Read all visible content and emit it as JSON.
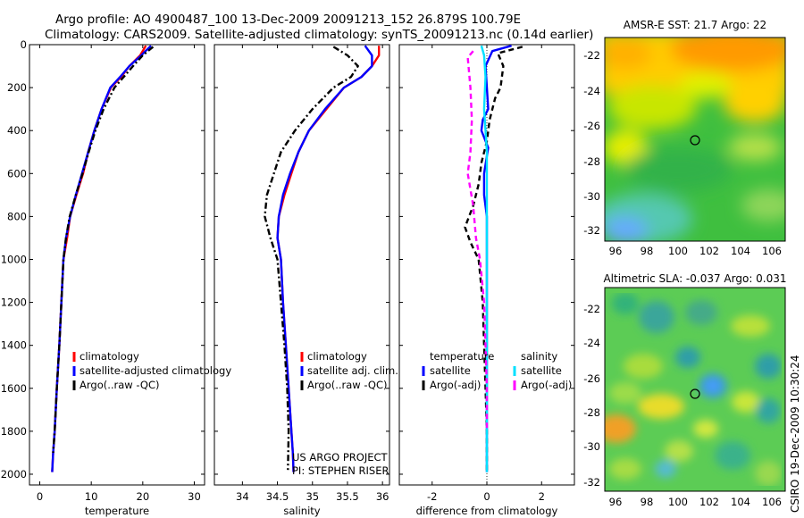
{
  "header": {
    "line1": "Argo profile: AO 4900487_100 13-Dec-2009 20091213_152 26.879S 100.79E",
    "line2": "Climatology: CARS2009. Satellite-adjusted climatology: synTS_20091213.nc (0.14d earlier)"
  },
  "colors": {
    "climatology": "#ff0000",
    "satellite": "#0000ff",
    "argo": "#000000",
    "satellite_salinity": "#00e0ff",
    "argo_salinity": "#ff00ff"
  },
  "chart_data": [
    {
      "type": "line",
      "id": "temperature",
      "xlabel": "temperature",
      "xlim": [
        -2,
        32
      ],
      "xticks": [
        0,
        10,
        20,
        30
      ],
      "ylim": [
        2050,
        0
      ],
      "yticks": [
        0,
        200,
        400,
        600,
        800,
        1000,
        1200,
        1400,
        1600,
        1800,
        2000
      ],
      "legend": [
        "climatology",
        "satellite-adjusted climatology",
        "Argo(..raw -QC)"
      ],
      "series": [
        {
          "name": "climatology",
          "color": "#ff0000",
          "dash": "",
          "x": [
            20.6,
            19.5,
            17.4,
            15.8,
            13.8,
            12.0,
            10.6,
            9.4,
            8.4,
            7.1,
            5.9,
            5.3,
            4.6,
            4.2,
            3.8,
            3.3,
            2.9,
            2.6,
            2.4
          ],
          "y": [
            5,
            50,
            100,
            150,
            200,
            300,
            400,
            500,
            600,
            700,
            800,
            900,
            1000,
            1200,
            1400,
            1600,
            1800,
            1900,
            1990
          ]
        },
        {
          "name": "satellite-adjusted climatology",
          "color": "#0000ff",
          "dash": "",
          "x": [
            21.6,
            19.7,
            17.4,
            15.6,
            13.7,
            12.0,
            10.6,
            9.4,
            8.2,
            7.0,
            5.9,
            5.1,
            4.6,
            4.2,
            3.8,
            3.3,
            2.9,
            2.6,
            2.4
          ],
          "y": [
            5,
            50,
            100,
            150,
            200,
            300,
            400,
            500,
            600,
            700,
            800,
            900,
            1000,
            1200,
            1400,
            1600,
            1800,
            1900,
            1990
          ]
        },
        {
          "name": "Argo(..raw -QC)",
          "color": "#000000",
          "dash": "7,3,2,3",
          "x": [
            22.0,
            20.0,
            18.1,
            16.3,
            14.5,
            12.4,
            10.8,
            9.5,
            8.3,
            7.0,
            5.8,
            5.1,
            4.6,
            4.2,
            3.8,
            3.3,
            2.9,
            2.6
          ],
          "y": [
            10,
            50,
            100,
            150,
            200,
            300,
            400,
            500,
            600,
            700,
            800,
            900,
            1000,
            1200,
            1400,
            1600,
            1800,
            1900
          ]
        }
      ]
    },
    {
      "type": "line",
      "id": "salinity",
      "xlabel": "salinity",
      "xlim": [
        33.6,
        36.1
      ],
      "xticks": [
        34,
        34.5,
        35,
        35.5,
        36
      ],
      "ylim": [
        2050,
        0
      ],
      "yticks": [
        0,
        200,
        400,
        600,
        800,
        1000,
        1200,
        1400,
        1600,
        1800,
        2000
      ],
      "legend": [
        "climatology",
        "satellite adj. clim.",
        "Argo(..raw -QC)"
      ],
      "annotations": [
        "US ARGO PROJECT",
        "PI: STEPHEN RISER"
      ],
      "series": [
        {
          "name": "climatology",
          "color": "#ff0000",
          "dash": "",
          "x": [
            35.95,
            35.95,
            35.85,
            35.7,
            35.45,
            35.2,
            34.95,
            34.8,
            34.7,
            34.6,
            34.52,
            34.5,
            34.55,
            34.58,
            34.62,
            34.66,
            34.7,
            34.72,
            34.73
          ],
          "y": [
            5,
            50,
            100,
            150,
            200,
            300,
            400,
            500,
            600,
            700,
            800,
            900,
            1000,
            1200,
            1400,
            1600,
            1800,
            1900,
            1990
          ]
        },
        {
          "name": "satellite adj. clim.",
          "color": "#0000ff",
          "dash": "",
          "x": [
            35.75,
            35.85,
            35.85,
            35.7,
            35.45,
            35.18,
            34.95,
            34.8,
            34.68,
            34.58,
            34.52,
            34.5,
            34.55,
            34.58,
            34.62,
            34.66,
            34.7,
            34.72,
            34.73
          ],
          "y": [
            5,
            50,
            100,
            150,
            200,
            300,
            400,
            500,
            600,
            700,
            800,
            900,
            1000,
            1200,
            1400,
            1600,
            1800,
            1900,
            1990
          ]
        },
        {
          "name": "Argo(..raw -QC)",
          "color": "#000000",
          "dash": "7,3,2,3",
          "x": [
            35.3,
            35.5,
            35.65,
            35.55,
            35.3,
            35.0,
            34.75,
            34.55,
            34.45,
            34.35,
            34.32,
            34.4,
            34.5,
            34.55,
            34.6,
            34.64,
            34.66,
            34.65
          ],
          "y": [
            10,
            50,
            100,
            150,
            200,
            300,
            400,
            500,
            600,
            700,
            800,
            900,
            1000,
            1200,
            1400,
            1600,
            1800,
            1980
          ]
        }
      ]
    },
    {
      "type": "line",
      "id": "difference",
      "xlabel": "difference from climatology",
      "xlim": [
        -3.2,
        3.2
      ],
      "xticks": [
        -2,
        0,
        2
      ],
      "ylim": [
        2050,
        0
      ],
      "yticks": [
        0,
        200,
        400,
        600,
        800,
        1000,
        1200,
        1400,
        1600,
        1800,
        2000
      ],
      "legend": {
        "temperature_heading": "temperature",
        "salinity_heading": "salinity",
        "entries": [
          "satellite",
          "Argo(-adj)",
          "satellite",
          "Argo(-adj)"
        ]
      },
      "series": [
        {
          "name": "temperature satellite",
          "color": "#0000ff",
          "dash": "",
          "x": [
            0.9,
            0.2,
            -0.05,
            0.0,
            0.05,
            -0.15,
            -0.2,
            0.05,
            -0.1,
            -0.1,
            0.0,
            0.0,
            0.0,
            0.0,
            0.0,
            0.0,
            0.0,
            0.0
          ],
          "y": [
            5,
            30,
            100,
            200,
            300,
            350,
            400,
            480,
            600,
            700,
            800,
            900,
            1000,
            1200,
            1400,
            1600,
            1800,
            1990
          ]
        },
        {
          "name": "temperature Argo(-adj)",
          "color": "#000000",
          "dash": "6,4",
          "x": [
            1.3,
            0.4,
            0.6,
            0.5,
            0.3,
            0.1,
            0.0,
            -0.2,
            -0.3,
            -0.5,
            -0.8,
            -0.6,
            -0.3,
            -0.15,
            -0.1,
            -0.05,
            0.0,
            0.0
          ],
          "y": [
            10,
            40,
            100,
            200,
            250,
            350,
            450,
            550,
            650,
            750,
            850,
            920,
            1000,
            1200,
            1400,
            1600,
            1800,
            1990
          ]
        },
        {
          "name": "salinity satellite",
          "color": "#00e0ff",
          "dash": "",
          "x": [
            -0.2,
            -0.1,
            -0.05,
            -0.1,
            -0.05,
            0.0,
            0.0,
            0.0,
            0.0,
            0.0,
            0.0,
            0.0,
            0.0
          ],
          "y": [
            5,
            50,
            150,
            300,
            400,
            500,
            700,
            900,
            1100,
            1400,
            1700,
            1900,
            1990
          ]
        },
        {
          "name": "salinity Argo(-adj)",
          "color": "#ff00ff",
          "dash": "6,4",
          "x": [
            -0.5,
            -0.7,
            -0.6,
            -0.55,
            -0.6,
            -0.7,
            -0.5,
            -0.4,
            -0.25,
            -0.1,
            -0.05,
            0.0,
            0.0
          ],
          "y": [
            30,
            60,
            200,
            350,
            500,
            600,
            750,
            900,
            1000,
            1200,
            1400,
            1600,
            1800
          ]
        }
      ]
    },
    {
      "type": "heatmap",
      "id": "sst-map",
      "title": "AMSR-E SST: 21.7 Argo: 22",
      "xticks": [
        "96",
        "98",
        "100",
        "102",
        "104",
        "106"
      ],
      "yticks": [
        "-22",
        "-24",
        "-26",
        "-28",
        "-30",
        "-32"
      ],
      "xlim": [
        95,
        106.5
      ],
      "ylim": [
        -33,
        -21
      ],
      "argo_position": {
        "lon": 100.79,
        "lat": -26.879
      }
    },
    {
      "type": "heatmap",
      "id": "sla-map",
      "title": "Altimetric SLA: -0.037 Argo: 0.031",
      "xticks": [
        "96",
        "98",
        "100",
        "102",
        "104",
        "106"
      ],
      "yticks": [
        "-22",
        "-24",
        "-26",
        "-28",
        "-30",
        "-32"
      ],
      "xlim": [
        95,
        106.5
      ],
      "ylim": [
        -33,
        -21
      ],
      "argo_position": {
        "lon": 100.79,
        "lat": -26.879
      }
    }
  ],
  "footer": {
    "credit": "CSIRO 19-Dec-2009 10:30:24"
  }
}
